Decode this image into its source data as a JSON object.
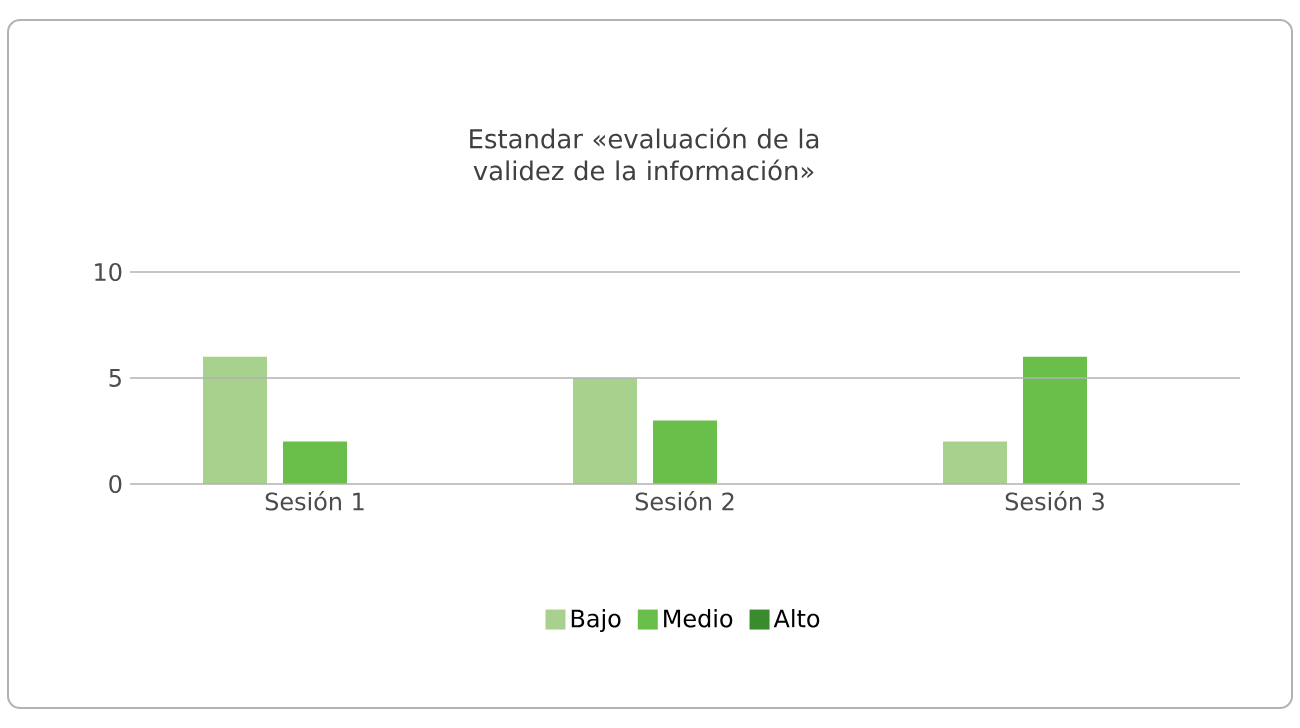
{
  "chart_data": {
    "type": "bar",
    "title": "Estandar «evaluación de la validez de la información»",
    "categories": [
      "Sesión 1",
      "Sesión 2",
      "Sesión 3"
    ],
    "series": [
      {
        "name": "Bajo",
        "color": "#a9d18e",
        "values": [
          6,
          5,
          2
        ]
      },
      {
        "name": "Medio",
        "color": "#6abf4b",
        "values": [
          2,
          3,
          6
        ]
      },
      {
        "name": "Alto",
        "color": "#3a8a2e",
        "values": [
          0,
          0,
          0
        ]
      }
    ],
    "ylim": [
      0,
      10
    ],
    "yticks": [
      0,
      5,
      10
    ],
    "grid": "y",
    "legend": "bottom"
  }
}
